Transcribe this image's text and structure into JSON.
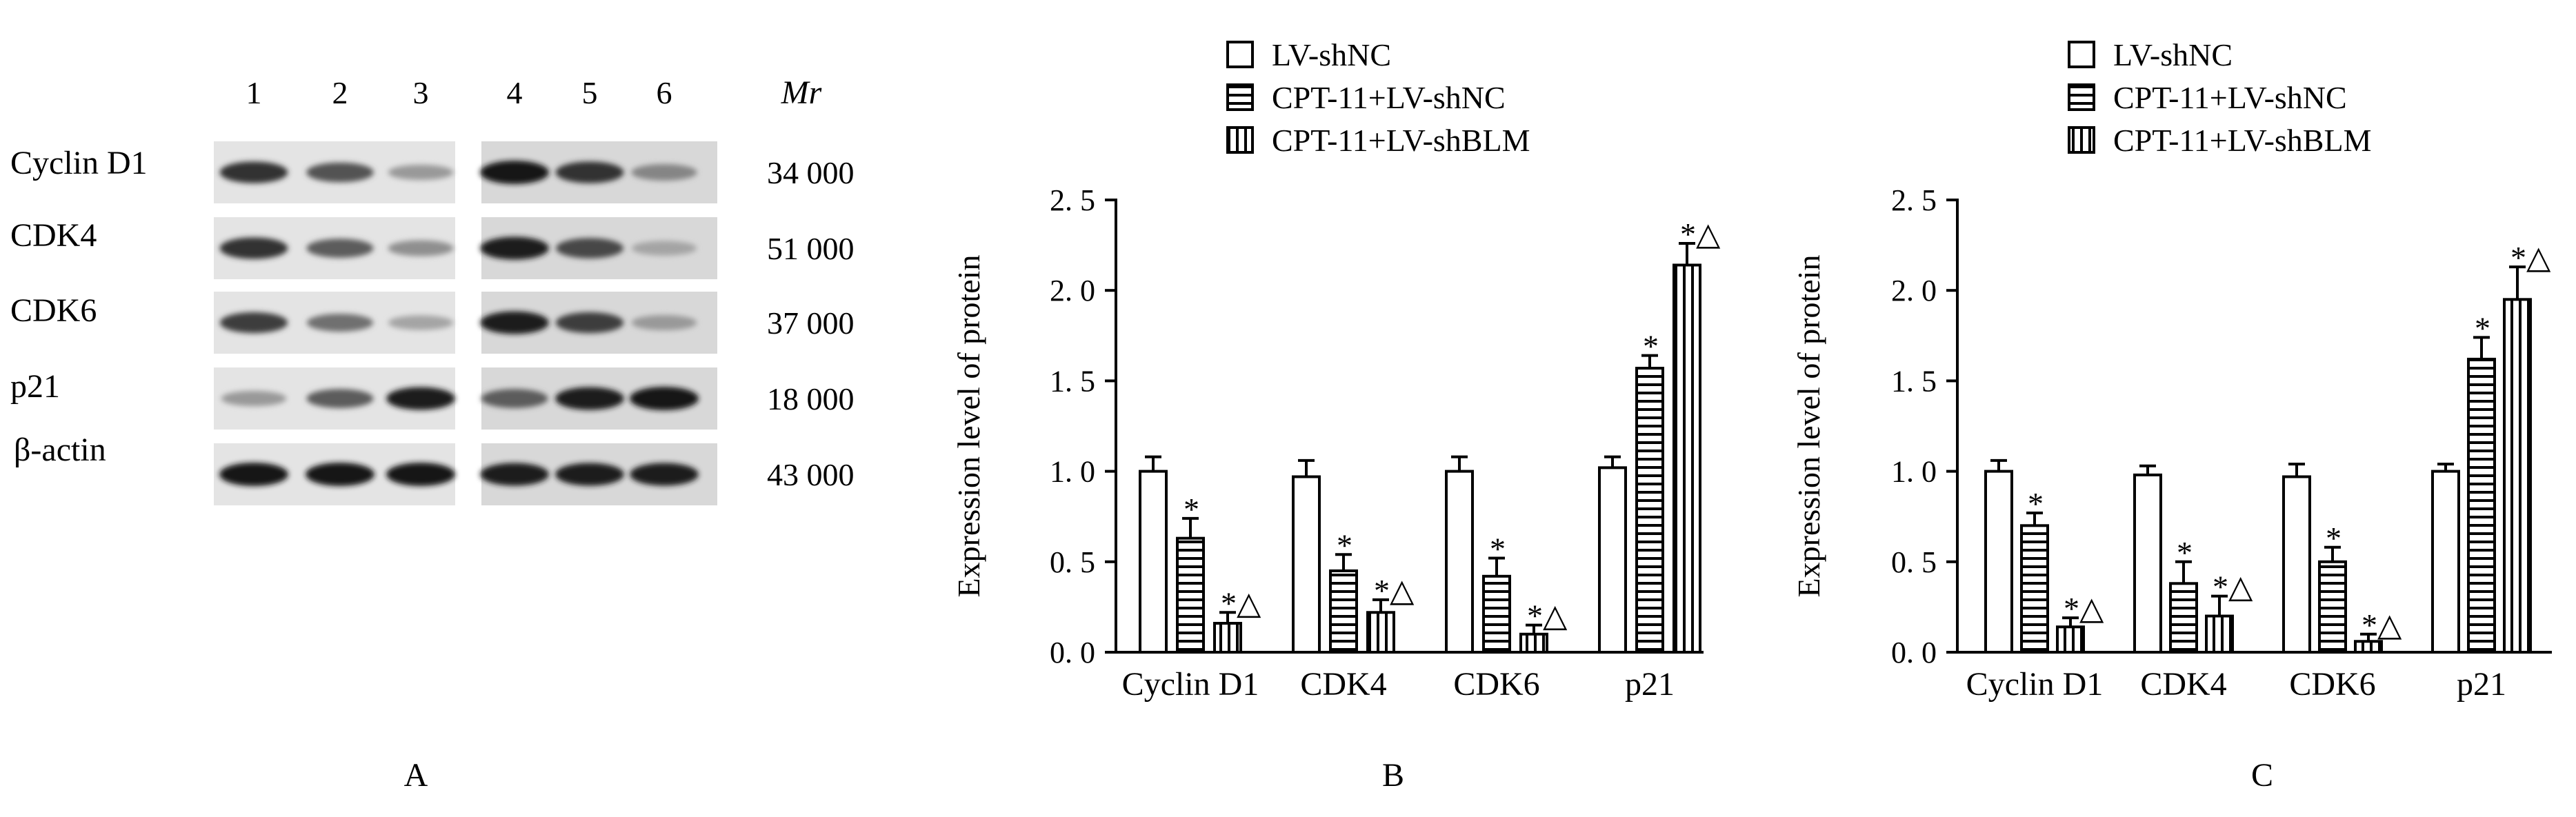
{
  "western_blot": {
    "panel_label": "A",
    "lanes": [
      "1",
      "2",
      "3",
      "4",
      "5",
      "6"
    ],
    "mr_header": "Mr",
    "proteins": [
      {
        "name": "Cyclin D1",
        "mr": "34 000",
        "intensity": [
          0.85,
          0.7,
          0.35,
          1.0,
          0.85,
          0.45
        ]
      },
      {
        "name": "CDK4",
        "mr": "51 000",
        "intensity": [
          0.85,
          0.65,
          0.4,
          0.95,
          0.75,
          0.3
        ]
      },
      {
        "name": "CDK6",
        "mr": "37 000",
        "intensity": [
          0.8,
          0.55,
          0.3,
          0.95,
          0.8,
          0.35
        ]
      },
      {
        "name": "p21",
        "mr": "18 000",
        "intensity": [
          0.35,
          0.65,
          0.95,
          0.65,
          0.95,
          1.0
        ]
      },
      {
        "name": "β-actin",
        "mr": "43 000",
        "intensity": [
          1.0,
          1.0,
          1.0,
          0.95,
          0.95,
          0.95
        ]
      }
    ]
  },
  "chart_data": [
    {
      "type": "bar",
      "panel_label": "B",
      "ylabel": "Expression level of protein",
      "ylim": [
        0,
        2.5
      ],
      "yticks": [
        "0. 0",
        "0. 5",
        "1. 0",
        "1. 5",
        "2. 0",
        "2. 5"
      ],
      "categories": [
        "Cyclin D1",
        "CDK4",
        "CDK6",
        "p21"
      ],
      "legend_position": "top",
      "series": [
        {
          "name": "LV-shNC",
          "pattern": "open",
          "values": [
            1.0,
            0.97,
            1.0,
            1.02
          ],
          "errors": [
            0.08,
            0.09,
            0.08,
            0.06
          ],
          "annotations": [
            "",
            "",
            "",
            ""
          ]
        },
        {
          "name": "CPT-11+LV-shNC",
          "pattern": "horizontal",
          "values": [
            0.63,
            0.45,
            0.42,
            1.57
          ],
          "errors": [
            0.11,
            0.09,
            0.1,
            0.07
          ],
          "annotations": [
            "*",
            "*",
            "*",
            "*"
          ]
        },
        {
          "name": "CPT-11+LV-shBLM",
          "pattern": "vertical",
          "values": [
            0.16,
            0.22,
            0.1,
            2.14
          ],
          "errors": [
            0.06,
            0.07,
            0.05,
            0.12
          ],
          "annotations": [
            "*△",
            "*△",
            "*△",
            "*△"
          ]
        }
      ]
    },
    {
      "type": "bar",
      "panel_label": "C",
      "ylabel": "Expression level of protein",
      "ylim": [
        0,
        2.5
      ],
      "yticks": [
        "0. 0",
        "0. 5",
        "1. 0",
        "1. 5",
        "2. 0",
        "2. 5"
      ],
      "categories": [
        "Cyclin D1",
        "CDK4",
        "CDK6",
        "p21"
      ],
      "legend_position": "top",
      "series": [
        {
          "name": "LV-shNC",
          "pattern": "open",
          "values": [
            1.0,
            0.98,
            0.97,
            1.0
          ],
          "errors": [
            0.06,
            0.05,
            0.07,
            0.04
          ],
          "annotations": [
            "",
            "",
            "",
            ""
          ]
        },
        {
          "name": "CPT-11+LV-shNC",
          "pattern": "horizontal",
          "values": [
            0.7,
            0.38,
            0.5,
            1.62
          ],
          "errors": [
            0.07,
            0.12,
            0.08,
            0.12
          ],
          "annotations": [
            "*",
            "*",
            "*",
            "*"
          ]
        },
        {
          "name": "CPT-11+LV-shBLM",
          "pattern": "vertical",
          "values": [
            0.14,
            0.2,
            0.06,
            1.95
          ],
          "errors": [
            0.05,
            0.11,
            0.04,
            0.18
          ],
          "annotations": [
            "*△",
            "*△",
            "*△",
            "*△"
          ]
        }
      ]
    }
  ]
}
